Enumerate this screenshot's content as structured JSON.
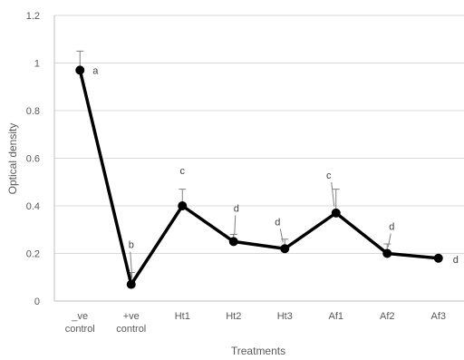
{
  "chart_data": {
    "type": "line",
    "title": "",
    "xlabel": "Treatments",
    "ylabel": "Optical density",
    "ylim": [
      0,
      1.2
    ],
    "yticks": [
      "0",
      "0.2",
      "0.4",
      "0.6",
      "0.8",
      "1",
      "1.2"
    ],
    "grid": true,
    "categories": [
      [
        "_ve",
        "control"
      ],
      [
        "+ve",
        "control"
      ],
      [
        "Ht1"
      ],
      [
        "Ht2"
      ],
      [
        "Ht3"
      ],
      [
        "Af1"
      ],
      [
        "Af2"
      ],
      [
        "Af3"
      ]
    ],
    "values": [
      0.97,
      0.07,
      0.4,
      0.25,
      0.22,
      0.37,
      0.2,
      0.18
    ],
    "error_upper": [
      1.05,
      0.12,
      0.47,
      0.28,
      0.26,
      0.47,
      0.24,
      0.18
    ],
    "significance_letters": [
      "a",
      "b",
      "c",
      "d",
      "d",
      "c",
      "d",
      "d"
    ],
    "colors": {
      "line": "#000000",
      "grid": "#d9d9d9",
      "axis": "#bfbfbf",
      "error_bar": "#808080",
      "text": "#595959"
    }
  }
}
